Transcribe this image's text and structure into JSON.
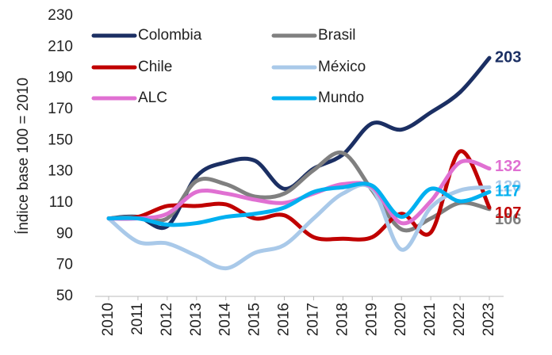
{
  "chart_data": {
    "type": "line",
    "y_label": "Índice base 100 = 2010",
    "categories": [
      "2010",
      "2011",
      "2012",
      "2013",
      "2014",
      "2015",
      "2016",
      "2017",
      "2018",
      "2019",
      "2020",
      "2021",
      "2022",
      "2023"
    ],
    "series": [
      {
        "name": "Colombia",
        "color": "#1b2f63",
        "values": [
          100,
          101,
          95,
          127,
          136,
          137,
          119,
          132,
          141,
          161,
          157,
          168,
          181,
          203
        ]
      },
      {
        "name": "Brasil",
        "color": "#808080",
        "values": [
          100,
          101,
          100,
          124,
          122,
          114,
          116,
          131,
          142,
          118,
          93,
          100,
          110,
          106
        ]
      },
      {
        "name": "Chile",
        "color": "#c00000",
        "values": [
          100,
          101,
          108,
          108,
          109,
          100,
          102,
          88,
          87,
          88,
          103,
          91,
          143,
          107
        ]
      },
      {
        "name": "México",
        "color": "#a9c9e9",
        "values": [
          100,
          85,
          84,
          76,
          68,
          78,
          83,
          100,
          116,
          119,
          80,
          107,
          118,
          120
        ]
      },
      {
        "name": "ALC",
        "color": "#e070d2",
        "values": [
          100,
          100,
          103,
          117,
          116,
          112,
          110,
          116,
          122,
          120,
          97,
          111,
          136,
          132
        ]
      },
      {
        "name": "Mundo",
        "color": "#00b0f0",
        "values": [
          100,
          100,
          96,
          97,
          101,
          103,
          107,
          117,
          120,
          121,
          101,
          119,
          111,
          117
        ]
      }
    ],
    "ylim": [
      50,
      230
    ],
    "yticks": [
      50,
      70,
      90,
      110,
      130,
      150,
      170,
      190,
      210,
      230
    ],
    "grid": false
  }
}
